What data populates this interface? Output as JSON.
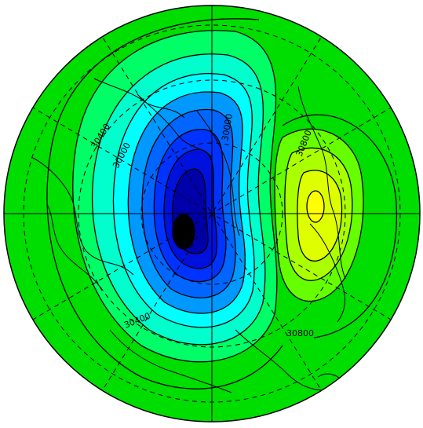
{
  "map": {
    "projection": "polar-stereographic",
    "field": "geopotential height",
    "colors": {
      "background": "#00dd00",
      "darkest_low": "#000000",
      "deep_low": "#0000aa",
      "mid_low": "#0033ff",
      "blue": "#0099ff",
      "cyan": "#00ffff",
      "aqua": "#00ffcc",
      "green_cyan": "#00ff66",
      "yellow_green": "#aaff00",
      "yellow": "#ffff00",
      "coastlines": "#000000",
      "contours": "#000000",
      "grid": "#000000"
    },
    "contour_labels": [
      {
        "text": "30400"
      },
      {
        "text": "30000"
      },
      {
        "text": "30000"
      },
      {
        "text": "30800"
      },
      {
        "text": "30400"
      },
      {
        "text": "30800"
      }
    ]
  }
}
